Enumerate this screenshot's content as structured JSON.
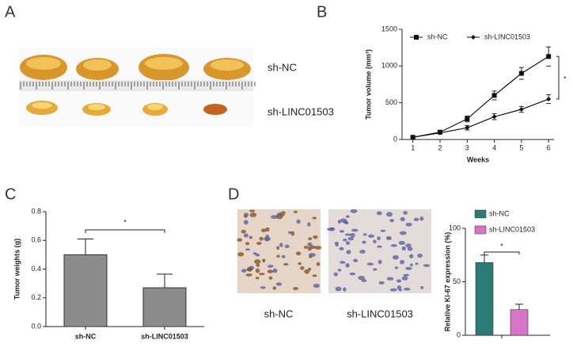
{
  "panel_labels": [
    "A",
    "B",
    "C",
    "D"
  ],
  "panel_a": {
    "row_labels": [
      "sh-NC",
      "sh-LINC01503"
    ]
  },
  "panel_d": {
    "image_labels": [
      "sh-NC",
      "sh-LINC01503"
    ]
  },
  "chart_data": [
    {
      "type": "line",
      "x": [
        1,
        2,
        3,
        4,
        5,
        6
      ],
      "xlim": [
        0.6,
        6.2
      ],
      "xticks": [
        1,
        2,
        3,
        4,
        5,
        6
      ],
      "ylim": [
        0,
        1500
      ],
      "yticks": [
        0,
        500,
        1000,
        1500
      ],
      "xlabel": "Weeks",
      "ylabel": "Tumor volume (mm³)",
      "annotation": "*",
      "series": [
        {
          "name": "sh-NC",
          "color": "#111111",
          "marker": "square",
          "values": [
            30,
            100,
            280,
            600,
            900,
            1130
          ],
          "errors": [
            10,
            15,
            40,
            60,
            80,
            130
          ]
        },
        {
          "name": "sh-LINC01503",
          "color": "#111111",
          "marker": "diamond",
          "values": [
            30,
            90,
            160,
            310,
            410,
            550
          ],
          "errors": [
            5,
            10,
            30,
            40,
            40,
            60
          ]
        }
      ]
    },
    {
      "type": "bar",
      "categories": [
        "sh-NC",
        "sh-LINC01503"
      ],
      "values": [
        0.5,
        0.27
      ],
      "errors": [
        0.11,
        0.095
      ],
      "color": "#8c8c8c",
      "ylim": [
        0,
        0.8
      ],
      "yticks": [
        {
          "value": 0,
          "label": "0.0"
        },
        0.2,
        0.4,
        0.6,
        0.8
      ],
      "ylabel": "Tumor weights (g)",
      "annotation": "*"
    },
    {
      "type": "grouped_bar",
      "categories": [
        null
      ],
      "series": [
        {
          "name": "sh-NC",
          "color": "#2a7b78",
          "values": [
            68
          ],
          "errors": [
            7
          ]
        },
        {
          "name": "sh-LINC01503",
          "color": "#d874c6",
          "values": [
            24
          ],
          "errors": [
            5
          ]
        }
      ],
      "ylim": [
        0,
        100
      ],
      "yticks": [
        0,
        50,
        100
      ],
      "ylabel": "Relative Ki-67 expression (%)",
      "annotation": "*"
    }
  ]
}
